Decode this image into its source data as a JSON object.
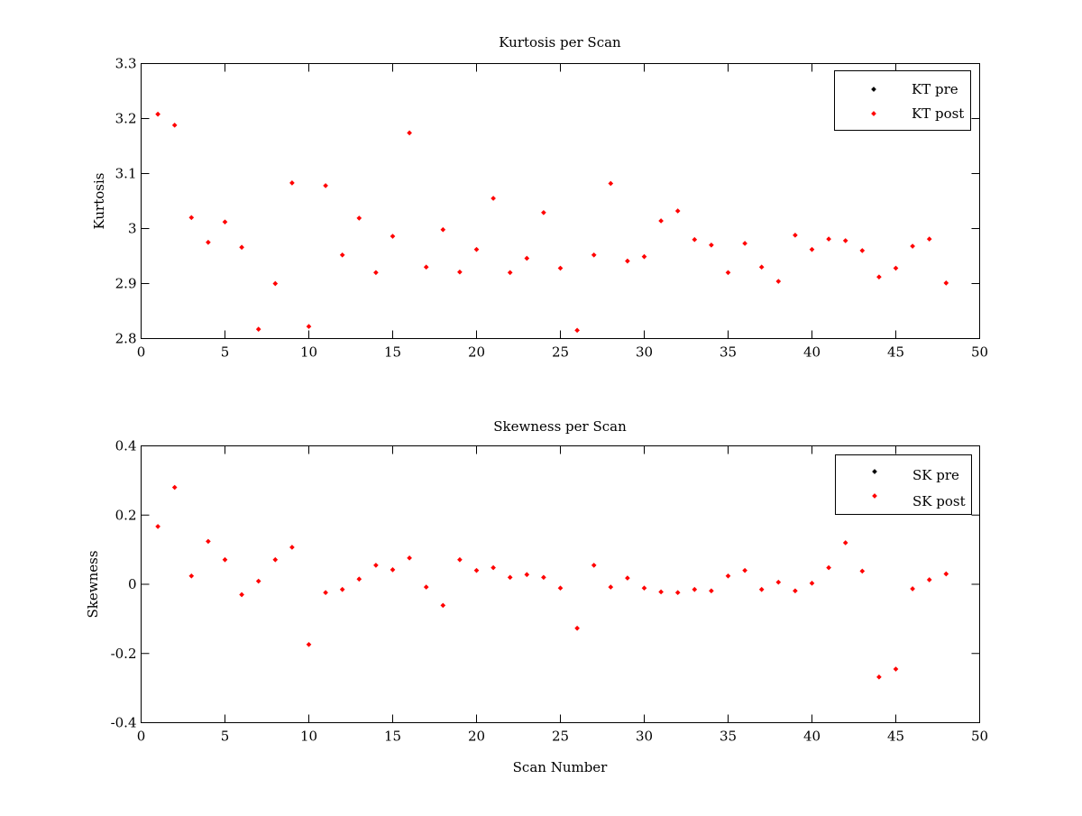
{
  "chart_data": [
    {
      "type": "scatter",
      "title": "Kurtosis per Scan",
      "xlabel": "",
      "ylabel": "Kurtosis",
      "xlim": [
        0,
        50
      ],
      "ylim": [
        2.8,
        3.3
      ],
      "xticks": [
        "0",
        "5",
        "10",
        "15",
        "20",
        "25",
        "30",
        "35",
        "40",
        "45",
        "50"
      ],
      "yticks": [
        "2.8",
        "2.9",
        "3",
        "3.1",
        "3.2",
        "3.3"
      ],
      "grid": false,
      "legend_position": "top-right",
      "legend": [
        {
          "name": "KT pre",
          "color": "#000000"
        },
        {
          "name": "KT post",
          "color": "#ff0000"
        }
      ],
      "series": [
        {
          "name": "KT post",
          "color": "#ff0000",
          "x": [
            1,
            2,
            3,
            4,
            5,
            6,
            7,
            8,
            9,
            10,
            11,
            12,
            13,
            14,
            15,
            16,
            17,
            18,
            19,
            20,
            21,
            22,
            23,
            24,
            25,
            26,
            27,
            28,
            29,
            30,
            31,
            32,
            33,
            34,
            35,
            36,
            37,
            38,
            39,
            40,
            41,
            42,
            43,
            44,
            45,
            46,
            47,
            48
          ],
          "y": [
            3.208,
            3.188,
            3.02,
            2.975,
            3.012,
            2.966,
            2.817,
            2.9,
            3.083,
            2.822,
            3.078,
            2.952,
            3.019,
            2.92,
            2.986,
            3.174,
            2.93,
            2.998,
            2.921,
            2.962,
            3.055,
            2.92,
            2.946,
            3.029,
            2.928,
            2.815,
            2.952,
            3.082,
            2.941,
            2.949,
            3.014,
            3.032,
            2.98,
            2.97,
            2.92,
            2.973,
            2.93,
            2.904,
            2.988,
            2.962,
            2.981,
            2.978,
            2.96,
            2.912,
            2.928,
            2.968,
            2.981,
            2.901
          ]
        }
      ]
    },
    {
      "type": "scatter",
      "title": "Skewness per Scan",
      "xlabel": "Scan Number",
      "ylabel": "Skewness",
      "xlim": [
        0,
        50
      ],
      "ylim": [
        -0.4,
        0.4
      ],
      "xticks": [
        "0",
        "5",
        "10",
        "15",
        "20",
        "25",
        "30",
        "35",
        "40",
        "45",
        "50"
      ],
      "yticks": [
        "-0.4",
        "-0.2",
        "0",
        "0.2",
        "0.4"
      ],
      "grid": false,
      "legend_position": "top-right",
      "legend": [
        {
          "name": "SK pre",
          "color": "#000000"
        },
        {
          "name": "SK post",
          "color": "#ff0000"
        }
      ],
      "series": [
        {
          "name": "SK post",
          "color": "#ff0000",
          "x": [
            1,
            2,
            3,
            4,
            5,
            6,
            7,
            8,
            9,
            10,
            11,
            12,
            13,
            14,
            15,
            16,
            17,
            18,
            19,
            20,
            21,
            22,
            23,
            24,
            25,
            26,
            27,
            28,
            29,
            30,
            31,
            32,
            33,
            34,
            35,
            36,
            37,
            38,
            39,
            40,
            41,
            42,
            43,
            44,
            45,
            46,
            47,
            48
          ],
          "y": [
            0.167,
            0.28,
            0.024,
            0.124,
            0.071,
            -0.03,
            0.009,
            0.071,
            0.107,
            -0.174,
            -0.024,
            -0.015,
            0.015,
            0.055,
            0.042,
            0.076,
            -0.008,
            -0.061,
            0.071,
            0.04,
            0.048,
            0.02,
            0.028,
            0.02,
            -0.011,
            -0.127,
            0.055,
            -0.008,
            0.018,
            -0.011,
            -0.022,
            -0.024,
            -0.015,
            -0.019,
            0.024,
            0.04,
            -0.015,
            0.006,
            -0.019,
            0.003,
            0.048,
            0.12,
            0.038,
            -0.268,
            -0.245,
            -0.013,
            0.013,
            0.03
          ]
        }
      ]
    }
  ]
}
